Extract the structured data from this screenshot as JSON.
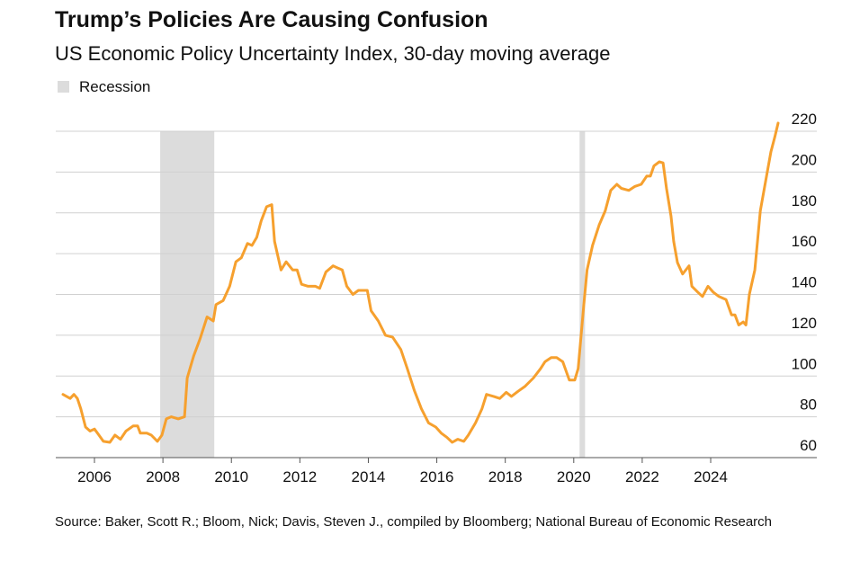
{
  "chart_data": {
    "type": "line",
    "title": "Trump’s Policies Are Causing Confusion",
    "subtitle": "US Economic Policy Uncertainty Index, 30-day moving average",
    "legend_label": "Recession",
    "recession_color": "#dcdcdc",
    "recessions": [
      [
        2007.92,
        2009.5
      ],
      [
        2020.17,
        2020.33
      ]
    ],
    "source": "Source: Baker, Scott R.; Bloom, Nick; Davis, Steven J., compiled by Bloomberg; National Bureau of Economic Research",
    "xlim": [
      2004.87,
      2027.1
    ],
    "ylim": [
      60,
      220
    ],
    "xticks": [
      2006,
      2008,
      2010,
      2012,
      2014,
      2016,
      2018,
      2020,
      2022,
      2024
    ],
    "yticks": [
      60,
      80,
      100,
      120,
      140,
      160,
      180,
      200,
      220
    ],
    "grid": true,
    "series": [
      {
        "name": "US Economic Policy Uncertainty Index",
        "color": "#f6a02e",
        "x": [
          2005.08,
          2005.29,
          2005.4,
          2005.5,
          2005.6,
          2005.74,
          2005.87,
          2006.0,
          2006.13,
          2006.26,
          2006.45,
          2006.6,
          2006.76,
          2006.92,
          2007.13,
          2007.26,
          2007.34,
          2007.53,
          2007.66,
          2007.84,
          2007.97,
          2008.1,
          2008.24,
          2008.45,
          2008.63,
          2008.71,
          2008.9,
          2009.08,
          2009.29,
          2009.47,
          2009.55,
          2009.76,
          2009.95,
          2010.13,
          2010.29,
          2010.47,
          2010.6,
          2010.74,
          2010.87,
          2011.03,
          2011.18,
          2011.26,
          2011.45,
          2011.6,
          2011.79,
          2011.92,
          2012.05,
          2012.24,
          2012.45,
          2012.58,
          2012.76,
          2012.97,
          2013.1,
          2013.24,
          2013.37,
          2013.55,
          2013.71,
          2013.97,
          2014.08,
          2014.29,
          2014.5,
          2014.71,
          2014.95,
          2015.13,
          2015.34,
          2015.55,
          2015.76,
          2015.97,
          2016.13,
          2016.29,
          2016.45,
          2016.61,
          2016.79,
          2016.92,
          2017.13,
          2017.32,
          2017.45,
          2017.66,
          2017.84,
          2018.03,
          2018.18,
          2018.37,
          2018.58,
          2018.82,
          2019.03,
          2019.16,
          2019.34,
          2019.5,
          2019.68,
          2019.87,
          2020.03,
          2020.13,
          2020.29,
          2020.39,
          2020.55,
          2020.74,
          2020.92,
          2021.08,
          2021.26,
          2021.39,
          2021.61,
          2021.79,
          2021.97,
          2022.13,
          2022.24,
          2022.34,
          2022.5,
          2022.61,
          2022.71,
          2022.84,
          2022.92,
          2023.03,
          2023.18,
          2023.37,
          2023.45,
          2023.63,
          2023.76,
          2023.92,
          2024.08,
          2024.24,
          2024.45,
          2024.61,
          2024.71,
          2024.82,
          2024.95,
          2025.03,
          2025.13,
          2025.29,
          2025.45,
          2025.61,
          2025.76,
          2025.87,
          2025.97
        ],
        "values": [
          91,
          89,
          91,
          89,
          84,
          75,
          73,
          74,
          71,
          68,
          67.5,
          71,
          69,
          73,
          75.5,
          75.5,
          72,
          72,
          71,
          68,
          71,
          79,
          80,
          79,
          80,
          99,
          110,
          118,
          129,
          127,
          135,
          137,
          144,
          156,
          158,
          165,
          164,
          168,
          176,
          183,
          184,
          166,
          152,
          156,
          152,
          152,
          145,
          144,
          144,
          143,
          151,
          154,
          153,
          152,
          144,
          140,
          142,
          142,
          132,
          127,
          120,
          119,
          113,
          104,
          93,
          84,
          77,
          75,
          72,
          70,
          67.5,
          69,
          68,
          71,
          77,
          84,
          91,
          90,
          89,
          92,
          90,
          92.5,
          95,
          99,
          103.6,
          107,
          109,
          109,
          107,
          98,
          98,
          103.6,
          134,
          152,
          164,
          174,
          181,
          191,
          194,
          192,
          191,
          193,
          194,
          198,
          198,
          203,
          205,
          204.5,
          192,
          178.5,
          166,
          155.6,
          150,
          154,
          144,
          141,
          139,
          144,
          141,
          139,
          137.5,
          130,
          130,
          125,
          126.5,
          125,
          140,
          152,
          181,
          196,
          210,
          217,
          224
        ]
      }
    ]
  }
}
